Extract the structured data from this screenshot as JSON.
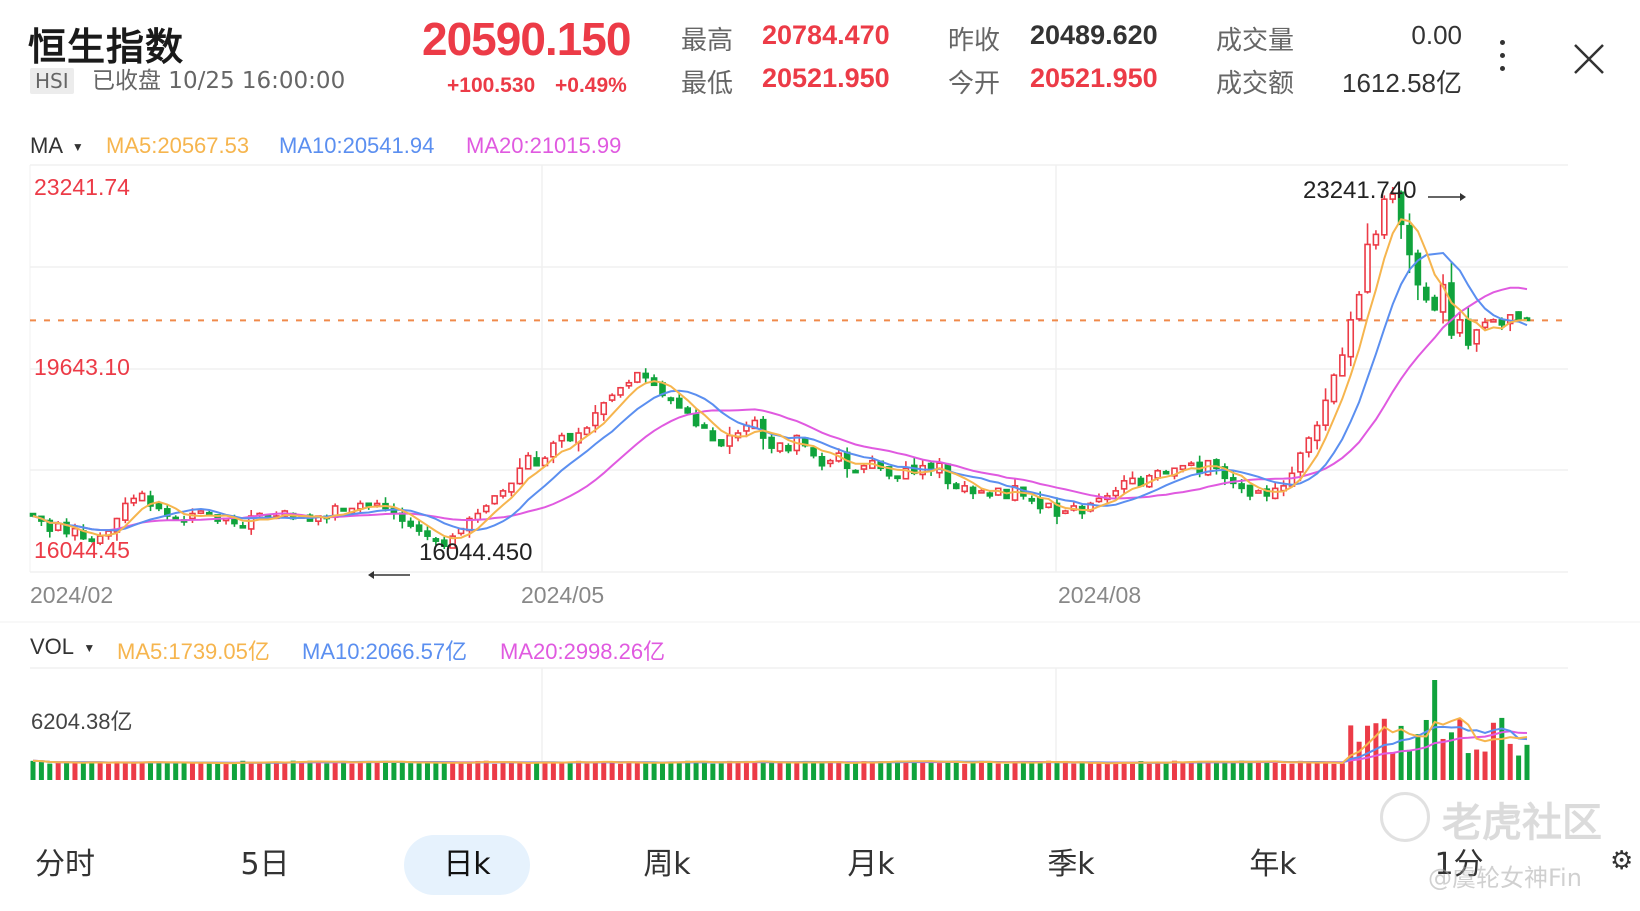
{
  "header": {
    "title": "恒生指数",
    "ticker": "HSI",
    "status": "已收盘 10/25 16:00:00",
    "price": "20590.150",
    "change": "+100.530",
    "change_pct": "+0.49%",
    "stats": [
      {
        "label": "最高",
        "value": "20784.470",
        "color": "red"
      },
      {
        "label": "最低",
        "value": "20521.950",
        "color": "red"
      },
      {
        "label": "昨收",
        "value": "20489.620",
        "color": "dark"
      },
      {
        "label": "今开",
        "value": "20521.950",
        "color": "red"
      },
      {
        "label": "成交量",
        "value": "0.00",
        "color": "normal"
      },
      {
        "label": "成交额",
        "value": "1612.58亿",
        "color": "normal"
      }
    ],
    "more_icon": "vertical-ellipsis-icon",
    "close_icon": "close-icon"
  },
  "price_panel": {
    "indicator": "MA",
    "ma5": "MA5:20567.53",
    "ma10": "MA10:20541.94",
    "ma20": "MA20:21015.99",
    "axis_high": "23241.74",
    "axis_mid": "19643.10",
    "axis_low": "16044.45",
    "max_annotation": "23241.740",
    "min_annotation": "16044.450",
    "date_labels": [
      "2024/02",
      "2024/05",
      "2024/08"
    ]
  },
  "volume_panel": {
    "indicator": "VOL",
    "ma5": "MA5:1739.05亿",
    "ma10": "MA10:2066.57亿",
    "ma20": "MA20:2998.26亿",
    "axis_high": "6204.38亿"
  },
  "tabs": [
    {
      "label": "分时",
      "active": false
    },
    {
      "label": "5日",
      "active": false
    },
    {
      "label": "日k",
      "active": true
    },
    {
      "label": "周k",
      "active": false
    },
    {
      "label": "月k",
      "active": false
    },
    {
      "label": "季k",
      "active": false
    },
    {
      "label": "年k",
      "active": false
    },
    {
      "label": "1分",
      "active": false
    }
  ],
  "watermark": {
    "brand": "老虎社区",
    "user": "@虞轮女神Fin"
  },
  "colors": {
    "up": "#ec3b47",
    "down": "#10a33c",
    "ma5": "#f6b54e",
    "ma10": "#5b8ff0",
    "ma20": "#e05ae0",
    "ref_line": "#f08a4b"
  },
  "chart_data": {
    "type": "candlestick",
    "title": "恒生指数 (HSI) 日K",
    "x_ticks": [
      "2024/02",
      "2024/05",
      "2024/08"
    ],
    "y_range": [
      16044.45,
      23241.74
    ],
    "y_ticks": [
      23241.74,
      19643.1,
      16044.45
    ],
    "reference_line": 20590.15,
    "max_point": 23241.74,
    "min_point": 16044.45,
    "moving_averages": {
      "MA5": 20567.53,
      "MA10": 20541.94,
      "MA20": 21015.99
    },
    "closes": [
      16700,
      16600,
      16400,
      16550,
      16350,
      16450,
      16250,
      16200,
      16300,
      16400,
      16650,
      16950,
      17050,
      17150,
      16900,
      16850,
      16700,
      16650,
      16600,
      16750,
      16800,
      16750,
      16600,
      16650,
      16550,
      16500,
      16700,
      16750,
      16650,
      16700,
      16800,
      16650,
      16700,
      16600,
      16700,
      16650,
      16900,
      16800,
      16850,
      16950,
      16900,
      16950,
      16850,
      16750,
      16600,
      16500,
      16400,
      16300,
      16200,
      16100,
      16300,
      16450,
      16650,
      16750,
      16900,
      17100,
      17200,
      17350,
      17650,
      17900,
      17700,
      17850,
      18150,
      18300,
      18200,
      18350,
      18450,
      18750,
      18950,
      19100,
      19250,
      19350,
      19550,
      19450,
      19300,
      19100,
      19000,
      18850,
      18750,
      18500,
      18450,
      18200,
      18100,
      18300,
      18350,
      18500,
      18600,
      18250,
      18050,
      18150,
      18000,
      18300,
      18100,
      17900,
      17700,
      17800,
      17950,
      17650,
      17600,
      17700,
      17800,
      17650,
      17500,
      17450,
      17650,
      17550,
      17700,
      17600,
      17750,
      17350,
      17250,
      17300,
      17150,
      17200,
      17100,
      17250,
      17050,
      17300,
      17100,
      17000,
      16850,
      16950,
      16700,
      16800,
      16900,
      16750,
      16950,
      17050,
      17100,
      17200,
      17400,
      17450,
      17300,
      17500,
      17600,
      17550,
      17650,
      17700,
      17750,
      17550,
      17800,
      17650,
      17450,
      17350,
      17250,
      17100,
      17200,
      17100,
      17250,
      17300,
      17550,
      17950,
      18250,
      18500,
      19000,
      19500,
      19900,
      20600,
      21100,
      22100,
      22300,
      23000,
      23100,
      22500,
      21900,
      21300,
      21000,
      20800,
      21300,
      20300,
      20600,
      20100,
      20400,
      20550,
      20600,
      20500,
      20700,
      20600,
      20590
    ],
    "volume_axis_max": 6204.38,
    "volume_unit": "亿"
  }
}
